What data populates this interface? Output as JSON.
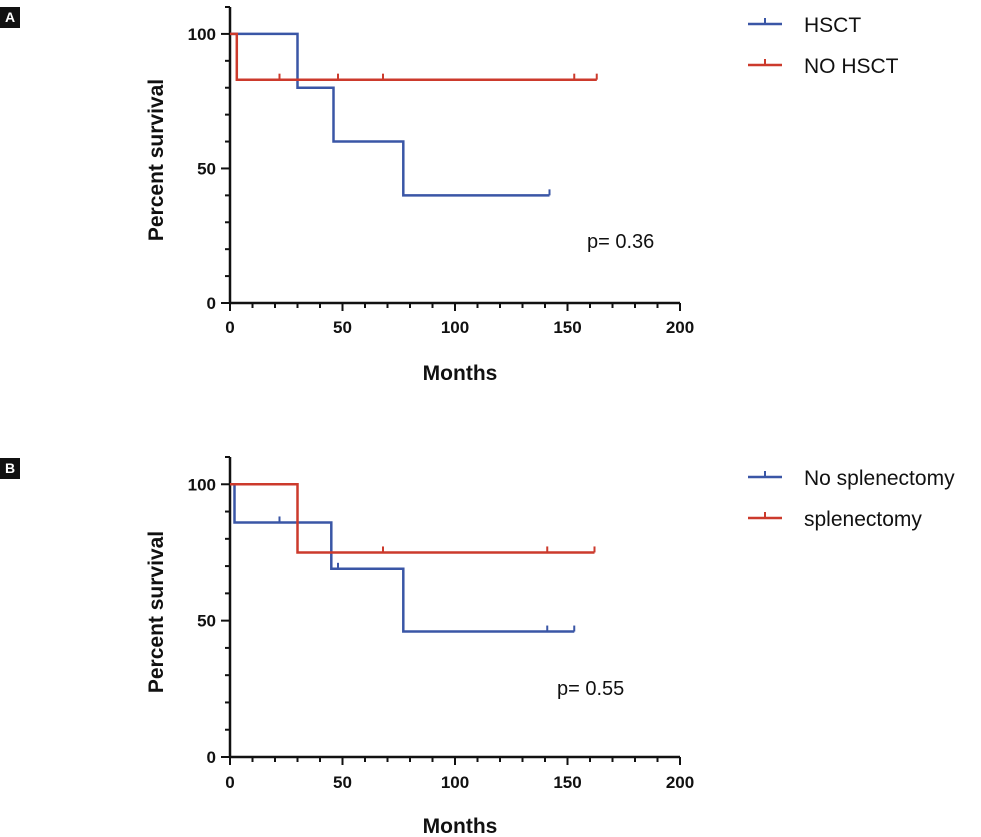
{
  "panels": {
    "a": {
      "label": "A"
    },
    "b": {
      "label": "B"
    }
  },
  "colors": {
    "series_blue": "#3a56a6",
    "series_red": "#cc3a2c",
    "axis": "#111111"
  },
  "chart_data": [
    {
      "type": "line",
      "subtype": "kaplan-meier step",
      "panel": "A",
      "xlabel": "Months",
      "ylabel": "Percent survival",
      "xlim": [
        0,
        200
      ],
      "ylim": [
        0,
        110
      ],
      "xticks": [
        0,
        50,
        100,
        150,
        200
      ],
      "yticks": [
        0,
        50,
        100
      ],
      "legend_position": "top-right",
      "annotation": "p= 0.36",
      "series": [
        {
          "name": "HSCT",
          "color": "#3a56a6",
          "steps": [
            [
              0,
              100
            ],
            [
              30,
              100
            ],
            [
              30,
              80
            ],
            [
              46,
              80
            ],
            [
              46,
              60
            ],
            [
              77,
              60
            ],
            [
              77,
              40
            ],
            [
              142,
              40
            ]
          ],
          "censor": [
            [
              142,
              40
            ]
          ]
        },
        {
          "name": "NO HSCT",
          "color": "#cc3a2c",
          "steps": [
            [
              0,
              100
            ],
            [
              3,
              100
            ],
            [
              3,
              83
            ],
            [
              163,
              83
            ]
          ],
          "censor": [
            [
              22,
              83
            ],
            [
              48,
              83
            ],
            [
              68,
              83
            ],
            [
              153,
              83
            ],
            [
              163,
              83
            ]
          ]
        }
      ]
    },
    {
      "type": "line",
      "subtype": "kaplan-meier step",
      "panel": "B",
      "xlabel": "Months",
      "ylabel": "Percent survival",
      "xlim": [
        0,
        200
      ],
      "ylim": [
        0,
        110
      ],
      "xticks": [
        0,
        50,
        100,
        150,
        200
      ],
      "yticks": [
        0,
        50,
        100
      ],
      "legend_position": "top-right",
      "annotation": "p= 0.55",
      "series": [
        {
          "name": "No splenectomy",
          "color": "#3a56a6",
          "steps": [
            [
              0,
              100
            ],
            [
              2,
              100
            ],
            [
              2,
              86
            ],
            [
              45,
              86
            ],
            [
              45,
              69
            ],
            [
              77,
              69
            ],
            [
              77,
              46
            ],
            [
              153,
              46
            ]
          ],
          "censor": [
            [
              22,
              86
            ],
            [
              48,
              69
            ],
            [
              141,
              46
            ],
            [
              153,
              46
            ]
          ]
        },
        {
          "name": "splenectomy",
          "color": "#cc3a2c",
          "steps": [
            [
              0,
              100
            ],
            [
              30,
              100
            ],
            [
              30,
              75
            ],
            [
              162,
              75
            ]
          ],
          "censor": [
            [
              68,
              75
            ],
            [
              141,
              75
            ],
            [
              162,
              75
            ]
          ]
        }
      ]
    }
  ]
}
